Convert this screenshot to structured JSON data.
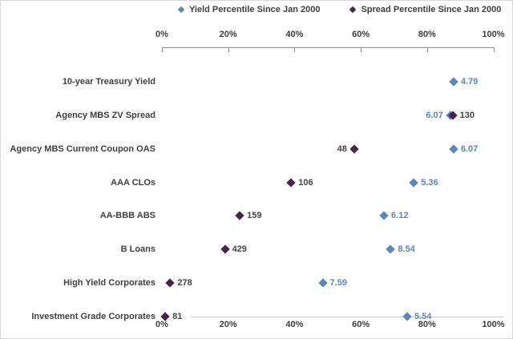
{
  "legend": {
    "items": [
      {
        "name": "yield-percentile",
        "label": "Yield Percentile Since Jan 2000",
        "color": "#5b87bb"
      },
      {
        "name": "spread-percentile",
        "label": "Spread Percentile Since Jan 2000",
        "color": "#472449"
      }
    ]
  },
  "colors": {
    "yield_marker": "#5b87bb",
    "spread_marker": "#472449",
    "yield_value_text": "#5b87bb",
    "spread_value_text": "#474046",
    "axis_text": "#3d3d3d",
    "category_text": "#414141",
    "axis_line": "#8f8f8f",
    "row_line": "#cbcbcb"
  },
  "chart_data": {
    "type": "scatter",
    "title": "",
    "x_axis": {
      "range": [
        0,
        100
      ],
      "ticks": [
        0,
        20,
        40,
        60,
        80,
        100
      ],
      "tick_labels": [
        "0%",
        "20%",
        "40%",
        "60%",
        "80%",
        "100%"
      ],
      "position": "top and bottom",
      "grid": false
    },
    "legend_position": "top",
    "series": [
      {
        "name": "Yield Percentile Since Jan 2000",
        "marker": "diamond",
        "color": "#5b87bb"
      },
      {
        "name": "Spread Percentile Since Jan 2000",
        "marker": "diamond",
        "color": "#472449"
      }
    ],
    "rows": [
      {
        "category": "10-year Treasury Yield",
        "yield_percentile": 88,
        "yield_label": "4.79",
        "yield_label_side": "right",
        "spread_percentile": null,
        "spread_label": null,
        "spread_label_side": null,
        "baseline": false
      },
      {
        "category": "Agency MBS ZV Spread",
        "yield_percentile": 87,
        "yield_label": "6.07",
        "yield_label_side": "left",
        "spread_percentile": 87.7,
        "spread_label": "130",
        "spread_label_side": "right",
        "baseline": false
      },
      {
        "category": "Agency MBS Current Coupon OAS",
        "yield_percentile": 88,
        "yield_label": "6.07",
        "yield_label_side": "right",
        "spread_percentile": 58,
        "spread_label": "48",
        "spread_label_side": "left",
        "baseline": false
      },
      {
        "category": "AAA CLOs",
        "yield_percentile": 76,
        "yield_label": "5.36",
        "yield_label_side": "right",
        "spread_percentile": 39,
        "spread_label": "106",
        "spread_label_side": "right",
        "baseline": false
      },
      {
        "category": "AA-BBB ABS",
        "yield_percentile": 67,
        "yield_label": "6.12",
        "yield_label_side": "right",
        "spread_percentile": 23.5,
        "spread_label": "159",
        "spread_label_side": "right",
        "baseline": false
      },
      {
        "category": "B Loans",
        "yield_percentile": 69,
        "yield_label": "8.54",
        "yield_label_side": "right",
        "spread_percentile": 19,
        "spread_label": "429",
        "spread_label_side": "right",
        "baseline": false
      },
      {
        "category": "High Yield Corporates",
        "yield_percentile": 48.5,
        "yield_label": "7.59",
        "yield_label_side": "right",
        "spread_percentile": 2.5,
        "spread_label": "278",
        "spread_label_side": "right",
        "baseline": false
      },
      {
        "category": "Investment Grade Corporates",
        "yield_percentile": 74,
        "yield_label": "5.54",
        "yield_label_side": "right",
        "spread_percentile": 1,
        "spread_label": "81",
        "spread_label_side": "right",
        "baseline": true
      }
    ]
  }
}
